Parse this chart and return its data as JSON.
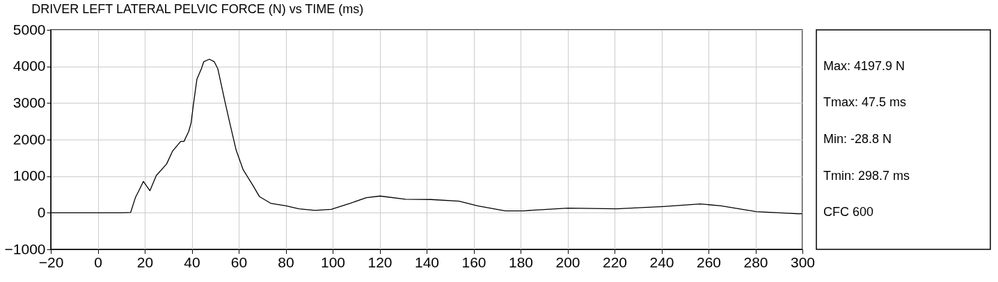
{
  "chart_data": {
    "type": "line",
    "title": "DRIVER LEFT LATERAL PELVIC FORCE (N) vs TIME (ms)",
    "x": [
      -20,
      0,
      10,
      14,
      16,
      17.5,
      19.4,
      22.2,
      24.9,
      29.3,
      31.8,
      35.3,
      36.7,
      38.7,
      39.7,
      40.7,
      42.2,
      44.1,
      45.1,
      47.5,
      49.6,
      51.1,
      54,
      56,
      58.9,
      61.9,
      65.9,
      68.8,
      73.8,
      80.2,
      85.6,
      92.5,
      99.4,
      107.3,
      114.3,
      120.2,
      131,
      141.9,
      153.8,
      161.7,
      173.5,
      181.4,
      186.4,
      200.2,
      220.9,
      240.7,
      256.5,
      265.4,
      280.2,
      298.7,
      300
    ],
    "series": [
      {
        "color": "#000000",
        "values": [
          0,
          0,
          0,
          10,
          413,
          604,
          857,
          604,
          1017,
          1333,
          1683,
          1950,
          1950,
          2223,
          2446,
          2952,
          3651,
          3937,
          4128,
          4197.9,
          4128,
          3937,
          3080,
          2509,
          1714,
          1175,
          762,
          444,
          254,
          191,
          108,
          64,
          95,
          254,
          413,
          457,
          369,
          362,
          318,
          191,
          51,
          51,
          76,
          127,
          108,
          172,
          241,
          191,
          32,
          -28.8,
          -20
        ]
      }
    ],
    "xlim": [
      -20,
      300
    ],
    "xticks": [
      -20,
      0,
      20,
      40,
      60,
      80,
      100,
      120,
      140,
      160,
      180,
      200,
      220,
      240,
      260,
      280,
      300
    ],
    "ylim": [
      -1000,
      5000
    ],
    "yticks": [
      -1000,
      0,
      1000,
      2000,
      3000,
      4000,
      5000
    ],
    "grid": true,
    "line_style": "solid",
    "annotations": [
      "Max: 4197.9 N",
      "Tmax: 47.5 ms",
      "Min: -28.8 N",
      "Tmin: 298.7 ms",
      "CFC 600"
    ]
  }
}
